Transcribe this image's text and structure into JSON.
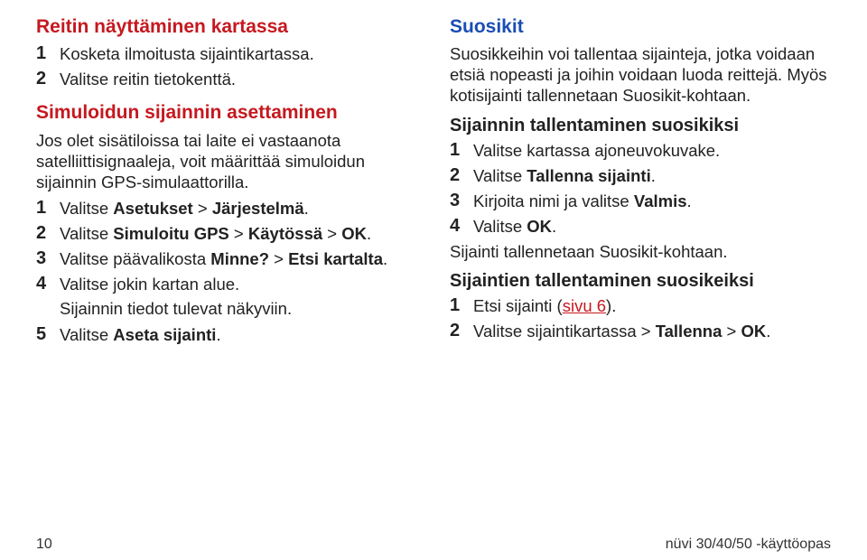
{
  "colors": {
    "heading_red": "#c6181f",
    "heading_blue": "#1a4db3",
    "link_red": "#c6181f",
    "body_text": "#222222",
    "background": "#ffffff"
  },
  "typography": {
    "heading_size_pt": 16,
    "body_size_pt": 14,
    "numeral_font": "Arial Narrow bold"
  },
  "left": {
    "section1": {
      "title": "Reitin näyttäminen kartassa",
      "steps": [
        {
          "n": "1",
          "text": "Kosketa ilmoitusta sijaintikartassa."
        },
        {
          "n": "2",
          "text": "Valitse reitin tietokenttä."
        }
      ]
    },
    "section2": {
      "title": "Simuloidun sijainnin asettaminen",
      "intro": "Jos olet sisätiloissa tai laite ei vastaanota satelliittisignaaleja, voit määrittää simuloidun sijainnin GPS-simulaattorilla.",
      "steps": [
        {
          "n": "1",
          "before": "Valitse ",
          "bold": "Asetukset",
          "mid": " > ",
          "bold2": "Järjestelmä",
          "after": "."
        },
        {
          "n": "2",
          "before": "Valitse ",
          "bold": "Simuloitu GPS",
          "mid": " > ",
          "bold2": "Käytössä",
          "mid2": " > ",
          "bold3": "OK",
          "after": "."
        },
        {
          "n": "3",
          "before": "Valitse päävalikosta ",
          "bold": "Minne?",
          "mid": " > ",
          "bold2": "Etsi kartalta",
          "after": "."
        },
        {
          "n": "4",
          "text": "Valitse jokin kartan alue.",
          "sub": "Sijainnin tiedot tulevat näkyviin."
        },
        {
          "n": "5",
          "before": "Valitse ",
          "bold": "Aseta sijainti",
          "after": "."
        }
      ]
    }
  },
  "right": {
    "section1": {
      "title": "Suosikit",
      "intro": "Suosikkeihin voi tallentaa sijainteja, jotka voidaan etsiä nopeasti ja joihin voidaan luoda reittejä. Myös kotisijainti tallennetaan Suosikit-kohtaan."
    },
    "group1": {
      "title": "Sijainnin tallentaminen suosikiksi",
      "steps": [
        {
          "n": "1",
          "text": "Valitse kartassa ajoneuvokuvake."
        },
        {
          "n": "2",
          "before": "Valitse ",
          "bold": "Tallenna sijainti",
          "after": "."
        },
        {
          "n": "3",
          "before": "Kirjoita nimi ja valitse ",
          "bold": "Valmis",
          "after": "."
        },
        {
          "n": "4",
          "before": "Valitse ",
          "bold": "OK",
          "after": "."
        }
      ],
      "outro": "Sijainti tallennetaan Suosikit-kohtaan."
    },
    "group2": {
      "title": "Sijaintien tallentaminen suosikeiksi",
      "steps": [
        {
          "n": "1",
          "before": "Etsi sijainti (",
          "link": "sivu 6",
          "after": ")."
        },
        {
          "n": "2",
          "before": "Valitse sijaintikartassa > ",
          "bold": "Tallenna",
          "mid": " > ",
          "bold2": "OK",
          "after": "."
        }
      ]
    }
  },
  "footer": {
    "page": "10",
    "doc": "nüvi 30/40/50 -käyttöopas"
  }
}
